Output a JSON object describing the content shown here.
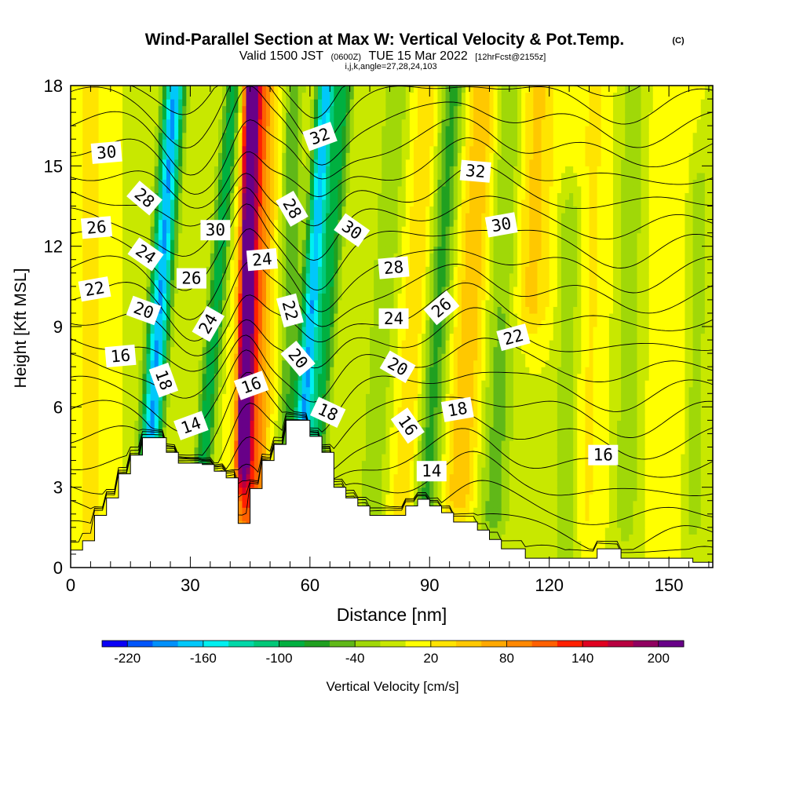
{
  "title": "Wind-Parallel Section at Max W: Vertical Velocity & Pot.Temp.",
  "title_tag": "(C)",
  "subtitle": {
    "prefix": "Valid 1500 JST",
    "utc": "(0600Z)",
    "date": "TUE 15 Mar 2022",
    "fcst": "[12hrFcst@2155z]"
  },
  "grid_info": "i,j,k,angle=27,28,24,103",
  "chart_data": {
    "type": "heatmap",
    "xlabel": "Distance [nm]",
    "ylabel": "Height [Kft MSL]",
    "xlim": [
      0,
      161
    ],
    "ylim": [
      0,
      18
    ],
    "x_ticks": [
      0,
      30,
      60,
      90,
      120,
      150
    ],
    "y_ticks": [
      0,
      3,
      6,
      9,
      12,
      15,
      18
    ],
    "colorbar": {
      "label": "Vertical Velocity [cm/s]",
      "tick_labels": [
        -220,
        -160,
        -100,
        -40,
        20,
        80,
        140,
        200
      ],
      "range": [
        -250,
        230
      ],
      "colors": [
        "#0a00f5",
        "#0055fa",
        "#0090fa",
        "#00c8fa",
        "#00f0f0",
        "#00d8a8",
        "#00c878",
        "#00b040",
        "#20a020",
        "#60b818",
        "#a0d808",
        "#c8e800",
        "#ffff00",
        "#ffe400",
        "#ffc800",
        "#ffa800",
        "#ff8800",
        "#ff6000",
        "#ff2000",
        "#e00020",
        "#b80040",
        "#900060",
        "#680088"
      ]
    },
    "terrain": [
      [
        0,
        0.65
      ],
      [
        3,
        0.65
      ],
      [
        3,
        1
      ],
      [
        6,
        1
      ],
      [
        6,
        1.95
      ],
      [
        9,
        1.95
      ],
      [
        9,
        2.6
      ],
      [
        12,
        2.6
      ],
      [
        12,
        3.5
      ],
      [
        15,
        3.5
      ],
      [
        15,
        4.2
      ],
      [
        18,
        4.2
      ],
      [
        18,
        4.85
      ],
      [
        24,
        4.85
      ],
      [
        24,
        4.3
      ],
      [
        27,
        4.3
      ],
      [
        27,
        3.9
      ],
      [
        33,
        3.9
      ],
      [
        33,
        3.85
      ],
      [
        36,
        3.85
      ],
      [
        36,
        3.6
      ],
      [
        39,
        3.6
      ],
      [
        39,
        3.35
      ],
      [
        42,
        3.35
      ],
      [
        42,
        1.65
      ],
      [
        45,
        1.65
      ],
      [
        45,
        2.95
      ],
      [
        48,
        2.95
      ],
      [
        48,
        4.0
      ],
      [
        51,
        4.0
      ],
      [
        51,
        4.6
      ],
      [
        54,
        4.6
      ],
      [
        54,
        5.5
      ],
      [
        60,
        5.5
      ],
      [
        60,
        4.9
      ],
      [
        63,
        4.9
      ],
      [
        63,
        4.3
      ],
      [
        66,
        4.3
      ],
      [
        66,
        3.0
      ],
      [
        69,
        3.0
      ],
      [
        69,
        2.6
      ],
      [
        72,
        2.6
      ],
      [
        72,
        2.3
      ],
      [
        75,
        2.3
      ],
      [
        75,
        1.95
      ],
      [
        84,
        1.95
      ],
      [
        84,
        2.3
      ],
      [
        87,
        2.3
      ],
      [
        87,
        2.55
      ],
      [
        90,
        2.55
      ],
      [
        90,
        2.3
      ],
      [
        93,
        2.3
      ],
      [
        93,
        2.05
      ],
      [
        96,
        2.05
      ],
      [
        96,
        1.7
      ],
      [
        102,
        1.7
      ],
      [
        102,
        1.4
      ],
      [
        105,
        1.4
      ],
      [
        105,
        1.05
      ],
      [
        108,
        1.05
      ],
      [
        108,
        0.7
      ],
      [
        114,
        0.7
      ],
      [
        114,
        0.35
      ],
      [
        132,
        0.35
      ],
      [
        132,
        0.7
      ],
      [
        138,
        0.7
      ],
      [
        138,
        0.35
      ],
      [
        156,
        0.35
      ],
      [
        156,
        0.2
      ],
      [
        161,
        0.2
      ]
    ],
    "w_features": [
      {
        "x": 22,
        "half_width": 2.6,
        "value": -190,
        "x_slope": 0.45,
        "y_range": [
          3,
          18
        ]
      },
      {
        "x": 36,
        "half_width": 2.2,
        "value": -100,
        "x_slope": 0.55,
        "y_range": [
          2.5,
          18
        ]
      },
      {
        "x": 44,
        "half_width": 1.6,
        "value": 230,
        "x_slope": 0.15,
        "y_range": [
          4.5,
          18
        ]
      },
      {
        "x": 46,
        "half_width": 4,
        "value": 120,
        "x_slope": 0.15,
        "y_range": [
          2,
          18
        ]
      },
      {
        "x": 55,
        "half_width": 2.5,
        "value": -60,
        "x_slope": 0.1,
        "y_range": [
          3,
          18
        ]
      },
      {
        "x": 60,
        "half_width": 2.2,
        "value": -180,
        "x_slope": 0.45,
        "y_range": [
          5,
          18
        ]
      },
      {
        "x": 64,
        "half_width": 2.5,
        "value": -90,
        "x_slope": 0.5,
        "y_range": [
          3,
          18
        ]
      },
      {
        "x": 78,
        "half_width": 3,
        "value": -40,
        "x_slope": 0.4,
        "y_range": [
          2,
          18
        ]
      },
      {
        "x": 86,
        "half_width": 3,
        "value": 40,
        "x_slope": 0.4,
        "y_range": [
          2,
          18
        ]
      },
      {
        "x": 92,
        "half_width": 3,
        "value": -70,
        "x_slope": 0.45,
        "y_range": [
          2,
          18
        ]
      },
      {
        "x": 100,
        "half_width": 4,
        "value": 60,
        "x_slope": 0.4,
        "y_range": [
          3,
          18
        ]
      },
      {
        "x": 108,
        "half_width": 4,
        "value": -50,
        "x_slope": 0.3,
        "y_range": [
          2,
          18
        ]
      },
      {
        "x": 115,
        "half_width": 5,
        "value": 50,
        "x_slope": 0.2,
        "y_range": [
          10,
          18
        ]
      },
      {
        "x": 125,
        "half_width": 3,
        "value": -40,
        "x_slope": 0.1,
        "y_range": [
          1,
          13
        ]
      },
      {
        "x": 130,
        "half_width": 4,
        "value": 25,
        "x_slope": 0.15,
        "y_range": [
          2,
          18
        ]
      },
      {
        "x": 140,
        "half_width": 3,
        "value": -35,
        "x_slope": 0.1,
        "y_range": [
          2,
          18
        ]
      },
      {
        "x": 150,
        "half_width": 4,
        "value": 20,
        "x_slope": 0.1,
        "y_range": [
          2,
          18
        ]
      },
      {
        "x": 157,
        "half_width": 2.5,
        "value": -30,
        "x_slope": 0.1,
        "y_range": [
          2,
          14
        ]
      },
      {
        "x": 5,
        "half_width": 4,
        "value": 25,
        "x_slope": 0,
        "y_range": [
          0,
          18
        ]
      }
    ],
    "theta_contour_levels": [
      13,
      14,
      15,
      16,
      17,
      18,
      19,
      20,
      21,
      22,
      23,
      24,
      25,
      26,
      27,
      28,
      29,
      30,
      31,
      32,
      33
    ],
    "theta_labels": [
      {
        "text": "30",
        "x": 9,
        "y": 15.5,
        "angle": -5
      },
      {
        "text": "28",
        "x": 18.5,
        "y": 13.8,
        "angle": 40
      },
      {
        "text": "26",
        "x": 6.5,
        "y": 12.7,
        "angle": -5
      },
      {
        "text": "24",
        "x": 18.8,
        "y": 11.7,
        "angle": 35
      },
      {
        "text": "22",
        "x": 6,
        "y": 10.4,
        "angle": -10
      },
      {
        "text": "20",
        "x": 18.3,
        "y": 9.6,
        "angle": 20
      },
      {
        "text": "16",
        "x": 12.5,
        "y": 7.9,
        "angle": -5
      },
      {
        "text": "18",
        "x": 23.3,
        "y": 7.0,
        "angle": 70
      },
      {
        "text": "14",
        "x": 30.2,
        "y": 5.3,
        "angle": -20
      },
      {
        "text": "30",
        "x": 36.3,
        "y": 12.6,
        "angle": 0
      },
      {
        "text": "26",
        "x": 30.3,
        "y": 10.8,
        "angle": 0
      },
      {
        "text": "24",
        "x": 34.5,
        "y": 9.1,
        "angle": -60
      },
      {
        "text": "24",
        "x": 48,
        "y": 11.5,
        "angle": -5
      },
      {
        "text": "16",
        "x": 45.3,
        "y": 6.8,
        "angle": -20
      },
      {
        "text": "32",
        "x": 62.5,
        "y": 16.1,
        "angle": -20
      },
      {
        "text": "28",
        "x": 55.5,
        "y": 13.4,
        "angle": 60
      },
      {
        "text": "22",
        "x": 55,
        "y": 9.6,
        "angle": 75
      },
      {
        "text": "20",
        "x": 57,
        "y": 7.8,
        "angle": 50
      },
      {
        "text": "18",
        "x": 64.5,
        "y": 5.8,
        "angle": 25
      },
      {
        "text": "30",
        "x": 70.5,
        "y": 12.6,
        "angle": 35
      },
      {
        "text": "28",
        "x": 81,
        "y": 11.2,
        "angle": -5
      },
      {
        "text": "24",
        "x": 81,
        "y": 9.3,
        "angle": 0
      },
      {
        "text": "20",
        "x": 82,
        "y": 7.5,
        "angle": 30
      },
      {
        "text": "16",
        "x": 84.5,
        "y": 5.3,
        "angle": 55
      },
      {
        "text": "14",
        "x": 90.5,
        "y": 3.6,
        "angle": 0
      },
      {
        "text": "26",
        "x": 93,
        "y": 9.7,
        "angle": -40
      },
      {
        "text": "18",
        "x": 97,
        "y": 5.9,
        "angle": -10
      },
      {
        "text": "32",
        "x": 101.5,
        "y": 14.8,
        "angle": 5
      },
      {
        "text": "30",
        "x": 108,
        "y": 12.8,
        "angle": -10
      },
      {
        "text": "22",
        "x": 111,
        "y": 8.6,
        "angle": -15
      },
      {
        "text": "16",
        "x": 133.5,
        "y": 4.2,
        "angle": 0
      }
    ]
  }
}
